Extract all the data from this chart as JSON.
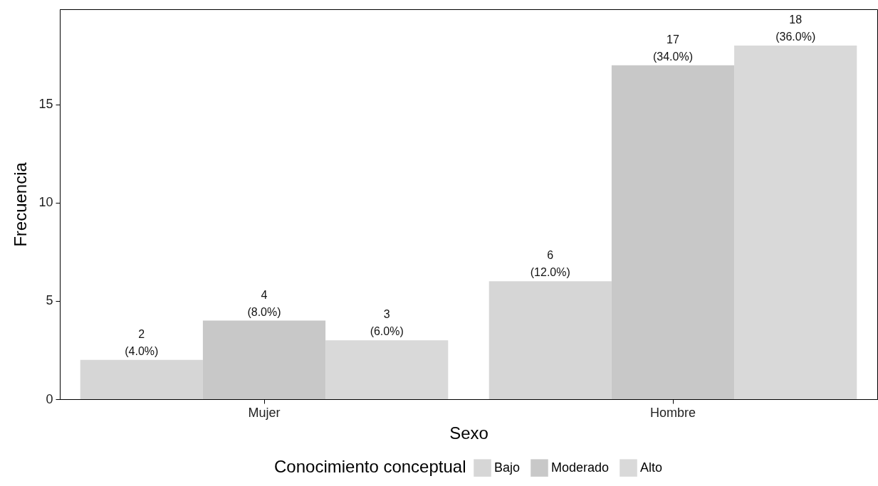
{
  "chart_data": {
    "type": "bar",
    "xlabel": "Sexo",
    "ylabel": "Frecuencia",
    "legend_title": "Conocimiento conceptual",
    "legend": "bottom",
    "categories": [
      "Mujer",
      "Hombre"
    ],
    "ylim": [
      0,
      19.85
    ],
    "yticks": [
      0,
      5,
      10,
      15
    ],
    "grid": false,
    "series": [
      {
        "name": "Bajo",
        "color": "#d6d6d6",
        "values": [
          2,
          6
        ],
        "value_labels": [
          "2\n(4.0%)",
          "6\n(12.0%)"
        ]
      },
      {
        "name": "Moderado",
        "color": "#c8c8c8",
        "values": [
          4,
          17
        ],
        "value_labels": [
          "4\n(8.0%)",
          "17\n(34.0%)"
        ]
      },
      {
        "name": "Alto",
        "color": "#d9d9d9",
        "values": [
          3,
          18
        ],
        "value_labels": [
          "3\n(6.0%)",
          "18\n(36.0%)"
        ]
      }
    ]
  }
}
